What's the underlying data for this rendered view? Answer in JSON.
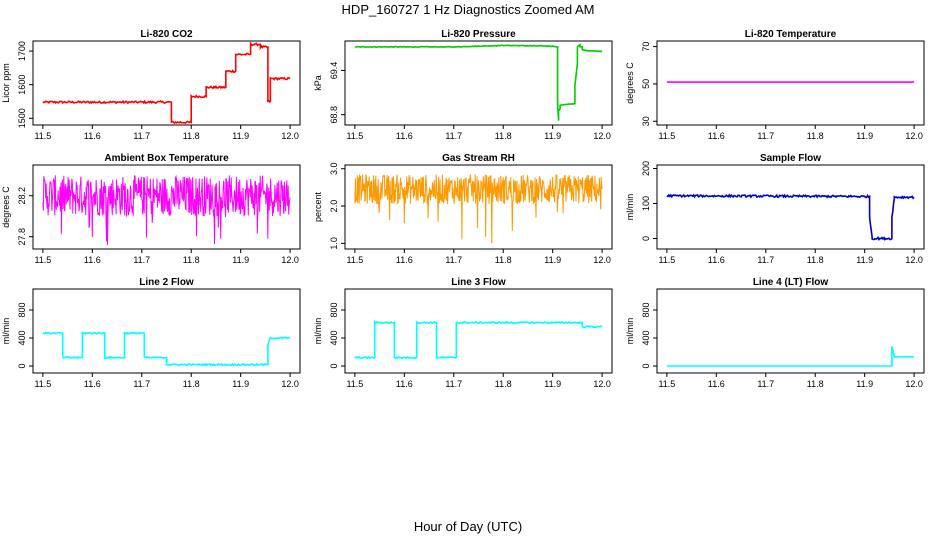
{
  "page": {
    "title": "HDP_160727  1 Hz Diagnostics Zoomed AM",
    "x_axis_label": "Hour of Day (UTC)"
  },
  "chart_data": [
    {
      "type": "line",
      "title": "Li-820 CO2",
      "ylabel": "Licor ppm",
      "color": "#ff0000",
      "xlim": [
        11.48,
        12.02
      ],
      "ylim": [
        1480,
        1730
      ],
      "xticks": [
        "11.5",
        "11.6",
        "11.7",
        "11.8",
        "11.9",
        "12.0"
      ],
      "yticks": [
        1500,
        1600,
        1700
      ],
      "noise": 3,
      "series": [
        {
          "x": [
            11.5,
            11.76,
            11.76,
            11.8,
            11.8,
            11.83,
            11.83,
            11.87,
            11.87,
            11.89,
            11.89,
            11.92,
            11.92,
            11.94,
            11.94,
            11.955,
            11.955,
            11.96,
            11.96,
            12.0
          ],
          "y": [
            1548,
            1548,
            1488,
            1488,
            1565,
            1565,
            1592,
            1592,
            1640,
            1640,
            1690,
            1690,
            1720,
            1720,
            1712,
            1712,
            1550,
            1550,
            1618,
            1618
          ]
        }
      ]
    },
    {
      "type": "line",
      "title": "Li-820 Pressure",
      "ylabel": "kPa",
      "color": "#00cc00",
      "xlim": [
        11.48,
        12.02
      ],
      "ylim": [
        68.66,
        69.8
      ],
      "xticks": [
        "11.5",
        "11.6",
        "11.7",
        "11.8",
        "11.9",
        "12.0"
      ],
      "yticks": [
        68.8,
        69.4
      ],
      "ytick_labels": [
        "68.8",
        "69.4"
      ],
      "noise": 0.004,
      "series": [
        {
          "x": [
            11.5,
            11.7,
            11.8,
            11.9,
            11.91,
            11.91,
            11.912,
            11.912,
            11.915,
            11.915,
            11.945,
            11.945,
            11.95,
            11.95,
            11.955,
            11.955,
            11.96,
            11.96,
            11.97,
            12.0
          ],
          "y": [
            69.72,
            69.72,
            69.74,
            69.73,
            69.72,
            68.95,
            68.72,
            68.85,
            68.88,
            68.93,
            68.95,
            69.2,
            69.5,
            69.72,
            69.75,
            69.72,
            69.72,
            69.68,
            69.67,
            69.66
          ]
        }
      ]
    },
    {
      "type": "line",
      "title": "Li-820 Temperature",
      "ylabel": "degrees C",
      "color": "#ff00ff",
      "xlim": [
        11.48,
        12.02
      ],
      "ylim": [
        28,
        73
      ],
      "xticks": [
        "11.5",
        "11.6",
        "11.7",
        "11.8",
        "11.9",
        "12.0"
      ],
      "yticks": [
        30,
        50,
        70
      ],
      "noise": 0,
      "series": [
        {
          "x": [
            11.5,
            12.0
          ],
          "y": [
            51,
            51
          ]
        }
      ]
    },
    {
      "type": "line",
      "title": "Ambient Box Temperature",
      "ylabel": "degrees C",
      "color": "#ff00ff",
      "xlim": [
        11.48,
        12.02
      ],
      "ylim": [
        27.68,
        28.5
      ],
      "xticks": [
        "11.5",
        "11.6",
        "11.7",
        "11.8",
        "11.9",
        "12.0"
      ],
      "yticks": [
        27.8,
        28.2
      ],
      "noise_band": [
        28.0,
        28.4
      ],
      "series": [
        {
          "x": [
            11.5,
            12.0
          ],
          "y": [
            28.2,
            28.2
          ]
        }
      ]
    },
    {
      "type": "line",
      "title": "Gas Stream RH",
      "ylabel": "percent",
      "color": "#ff9900",
      "xlim": [
        11.48,
        12.02
      ],
      "ylim": [
        0.85,
        3.1
      ],
      "xticks": [
        "11.5",
        "11.6",
        "11.7",
        "11.8",
        "11.9",
        "12.0"
      ],
      "yticks": [
        1.0,
        2.0,
        3.0
      ],
      "ytick_labels": [
        "1.0",
        "2.0",
        "3.0"
      ],
      "noise_band": [
        2.05,
        2.85
      ],
      "series": [
        {
          "x": [
            11.5,
            12.0
          ],
          "y": [
            2.45,
            2.45
          ]
        }
      ]
    },
    {
      "type": "line",
      "title": "Sample Flow",
      "ylabel": "ml/min",
      "color": "#0000cc",
      "xlim": [
        11.48,
        12.02
      ],
      "ylim": [
        -30,
        210
      ],
      "xticks": [
        "11.5",
        "11.6",
        "11.7",
        "11.8",
        "11.9",
        "12.0"
      ],
      "yticks": [
        0,
        100,
        200
      ],
      "noise": 3,
      "series": [
        {
          "x": [
            11.5,
            11.91,
            11.91,
            11.915,
            11.915,
            11.955,
            11.955,
            11.96,
            11.96,
            12.0
          ],
          "y": [
            122,
            120,
            60,
            5,
            0,
            0,
            60,
            115,
            118,
            118
          ]
        }
      ]
    },
    {
      "type": "line",
      "title": "Line 2 Flow",
      "ylabel": "ml/min",
      "color": "#00ffff",
      "xlim": [
        11.48,
        12.02
      ],
      "ylim": [
        -100,
        1100
      ],
      "xticks": [
        "11.5",
        "11.6",
        "11.7",
        "11.8",
        "11.9",
        "12.0"
      ],
      "yticks": [
        0,
        400,
        800
      ],
      "noise": 10,
      "series": [
        {
          "x": [
            11.5,
            11.54,
            11.54,
            11.58,
            11.58,
            11.625,
            11.625,
            11.665,
            11.665,
            11.705,
            11.705,
            11.75,
            11.75,
            11.955,
            11.955,
            11.96,
            11.96,
            12.0
          ],
          "y": [
            470,
            470,
            120,
            120,
            470,
            470,
            120,
            120,
            470,
            470,
            120,
            120,
            20,
            20,
            300,
            410,
            400,
            400
          ]
        }
      ]
    },
    {
      "type": "line",
      "title": "Line 3 Flow",
      "ylabel": "ml/min",
      "color": "#00ffff",
      "xlim": [
        11.48,
        12.02
      ],
      "ylim": [
        -100,
        1100
      ],
      "xticks": [
        "11.5",
        "11.6",
        "11.7",
        "11.8",
        "11.9",
        "12.0"
      ],
      "yticks": [
        0,
        400,
        800
      ],
      "noise": 10,
      "series": [
        {
          "x": [
            11.5,
            11.54,
            11.54,
            11.58,
            11.58,
            11.625,
            11.625,
            11.665,
            11.665,
            11.705,
            11.705,
            11.96,
            11.96,
            12.0
          ],
          "y": [
            120,
            120,
            620,
            620,
            120,
            120,
            620,
            620,
            120,
            120,
            620,
            620,
            560,
            560
          ]
        }
      ]
    },
    {
      "type": "line",
      "title": "Line 4 (LT) Flow",
      "ylabel": "ml/min",
      "color": "#00ffff",
      "xlim": [
        11.48,
        12.02
      ],
      "ylim": [
        -100,
        1100
      ],
      "xticks": [
        "11.5",
        "11.6",
        "11.7",
        "11.8",
        "11.9",
        "12.0"
      ],
      "yticks": [
        0,
        400,
        800
      ],
      "noise": 0,
      "series": [
        {
          "x": [
            11.5,
            11.955,
            11.955,
            11.96,
            11.96,
            12.0
          ],
          "y": [
            0,
            0,
            280,
            140,
            130,
            130
          ]
        }
      ]
    }
  ]
}
